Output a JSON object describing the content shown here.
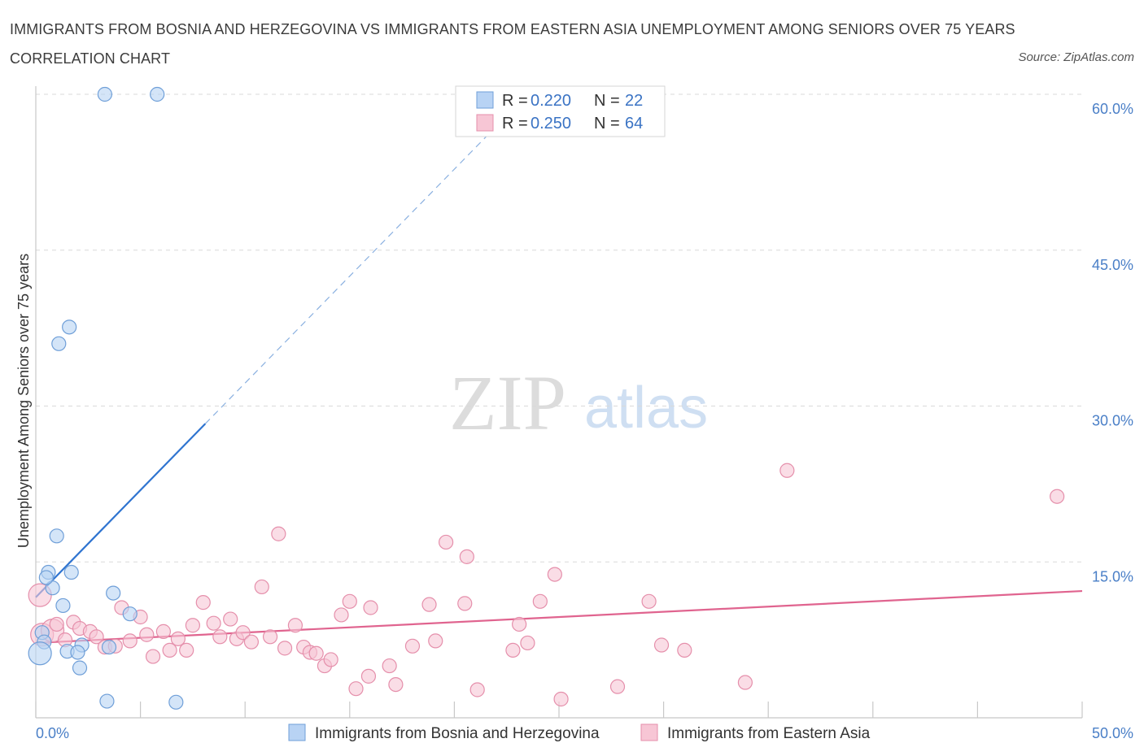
{
  "header": {
    "title": "IMMIGRANTS FROM BOSNIA AND HERZEGOVINA VS IMMIGRANTS FROM EASTERN ASIA UNEMPLOYMENT AMONG SENIORS OVER 75 YEARS CORRELATION CHART",
    "source": "Source: ZipAtlas.com"
  },
  "watermark": {
    "zip": "ZIP",
    "atlas": "atlas"
  },
  "colors": {
    "blue_fill": "#b8d3f4",
    "blue_stroke": "#6f9fd8",
    "blue_line": "#2f74d0",
    "pink_fill": "#f7c6d5",
    "pink_stroke": "#e58fab",
    "pink_line": "#e0648f",
    "axis_label": "#4a7fc7",
    "grid": "#d9d9d9"
  },
  "legend": {
    "r_label": "R =",
    "n_label": "N =",
    "rows": [
      {
        "series": "Immigrants from Bosnia and Herzegovina",
        "r": "0.220",
        "n": "22"
      },
      {
        "series": "Immigrants from Eastern Asia",
        "r": "0.250",
        "n": "64"
      }
    ]
  },
  "chart_data": {
    "type": "scatter",
    "title": "IMMIGRANTS FROM BOSNIA AND HERZEGOVINA VS IMMIGRANTS FROM EASTERN ASIA UNEMPLOYMENT AMONG SENIORS OVER 75 YEARS CORRELATION CHART",
    "xlabel": "",
    "ylabel": "Unemployment Among Seniors over 75 years",
    "xlim": [
      0,
      50
    ],
    "ylim": [
      0,
      60
    ],
    "x_tick_labels": [
      "0.0%",
      "50.0%"
    ],
    "y_ticks": [
      15,
      30,
      45,
      60
    ],
    "y_tick_labels": [
      "15.0%",
      "30.0%",
      "45.0%",
      "60.0%"
    ],
    "grid": true,
    "series": [
      {
        "name": "Immigrants from Bosnia and Herzegovina",
        "color": "#6f9fd8",
        "r": 0.22,
        "n": 22,
        "points": [
          {
            "x": 3.3,
            "y": 60.0
          },
          {
            "x": 5.8,
            "y": 60.0
          },
          {
            "x": 1.6,
            "y": 37.6
          },
          {
            "x": 1.1,
            "y": 36.0
          },
          {
            "x": 1.0,
            "y": 17.5
          },
          {
            "x": 0.6,
            "y": 14.0
          },
          {
            "x": 1.7,
            "y": 14.0
          },
          {
            "x": 0.8,
            "y": 12.5
          },
          {
            "x": 3.7,
            "y": 12.0
          },
          {
            "x": 1.3,
            "y": 10.8
          },
          {
            "x": 4.5,
            "y": 10.0
          },
          {
            "x": 0.3,
            "y": 8.2
          },
          {
            "x": 0.4,
            "y": 7.3
          },
          {
            "x": 2.2,
            "y": 7.0
          },
          {
            "x": 3.5,
            "y": 6.8
          },
          {
            "x": 1.5,
            "y": 6.4
          },
          {
            "x": 2.0,
            "y": 6.3
          },
          {
            "x": 0.2,
            "y": 6.2,
            "size": "large"
          },
          {
            "x": 2.1,
            "y": 4.8
          },
          {
            "x": 3.4,
            "y": 1.6
          },
          {
            "x": 6.7,
            "y": 1.5
          },
          {
            "x": 0.5,
            "y": 13.5
          }
        ],
        "trend": {
          "x0": 0,
          "y0": 11.6,
          "x1": 8.1,
          "y1": 28.3,
          "dashed_to": {
            "x": 21.8,
            "y": 56.5
          }
        }
      },
      {
        "name": "Immigrants from Eastern Asia",
        "color": "#e58fab",
        "r": 0.25,
        "n": 64,
        "points": [
          {
            "x": 0.2,
            "y": 11.8,
            "size": "large"
          },
          {
            "x": 0.3,
            "y": 8.0,
            "size": "large"
          },
          {
            "x": 0.8,
            "y": 8.4,
            "size": "large"
          },
          {
            "x": 1.0,
            "y": 9.0
          },
          {
            "x": 1.4,
            "y": 7.5
          },
          {
            "x": 1.8,
            "y": 9.2
          },
          {
            "x": 2.1,
            "y": 8.6
          },
          {
            "x": 2.6,
            "y": 8.3
          },
          {
            "x": 2.9,
            "y": 7.8
          },
          {
            "x": 3.3,
            "y": 6.8
          },
          {
            "x": 3.8,
            "y": 6.9
          },
          {
            "x": 4.1,
            "y": 10.6
          },
          {
            "x": 4.5,
            "y": 7.4
          },
          {
            "x": 5.0,
            "y": 9.7
          },
          {
            "x": 5.3,
            "y": 8.0
          },
          {
            "x": 5.6,
            "y": 5.9
          },
          {
            "x": 6.1,
            "y": 8.3
          },
          {
            "x": 6.4,
            "y": 6.5
          },
          {
            "x": 6.8,
            "y": 7.6
          },
          {
            "x": 7.2,
            "y": 6.5
          },
          {
            "x": 7.5,
            "y": 8.9
          },
          {
            "x": 8.0,
            "y": 11.1
          },
          {
            "x": 8.5,
            "y": 9.1
          },
          {
            "x": 8.8,
            "y": 7.8
          },
          {
            "x": 9.3,
            "y": 9.5
          },
          {
            "x": 9.6,
            "y": 7.6
          },
          {
            "x": 9.9,
            "y": 8.2
          },
          {
            "x": 10.3,
            "y": 7.3
          },
          {
            "x": 10.8,
            "y": 12.6
          },
          {
            "x": 11.2,
            "y": 7.8
          },
          {
            "x": 11.6,
            "y": 17.7
          },
          {
            "x": 11.9,
            "y": 6.7
          },
          {
            "x": 12.4,
            "y": 8.9
          },
          {
            "x": 12.8,
            "y": 6.8
          },
          {
            "x": 13.1,
            "y": 6.3
          },
          {
            "x": 13.4,
            "y": 6.2
          },
          {
            "x": 13.8,
            "y": 5.0
          },
          {
            "x": 14.1,
            "y": 5.6
          },
          {
            "x": 14.6,
            "y": 9.9
          },
          {
            "x": 15.0,
            "y": 11.2
          },
          {
            "x": 15.3,
            "y": 2.8
          },
          {
            "x": 15.9,
            "y": 4.0
          },
          {
            "x": 16.0,
            "y": 10.6
          },
          {
            "x": 16.9,
            "y": 5.0
          },
          {
            "x": 17.2,
            "y": 3.2
          },
          {
            "x": 18.0,
            "y": 6.9
          },
          {
            "x": 18.8,
            "y": 10.9
          },
          {
            "x": 19.1,
            "y": 7.4
          },
          {
            "x": 19.6,
            "y": 16.9
          },
          {
            "x": 20.5,
            "y": 11.0
          },
          {
            "x": 20.6,
            "y": 15.5
          },
          {
            "x": 21.1,
            "y": 2.7
          },
          {
            "x": 22.8,
            "y": 6.5
          },
          {
            "x": 23.1,
            "y": 9.0
          },
          {
            "x": 23.5,
            "y": 7.2
          },
          {
            "x": 24.1,
            "y": 11.2
          },
          {
            "x": 24.8,
            "y": 13.8
          },
          {
            "x": 25.1,
            "y": 1.8
          },
          {
            "x": 27.8,
            "y": 3.0
          },
          {
            "x": 29.3,
            "y": 11.2
          },
          {
            "x": 29.9,
            "y": 7.0
          },
          {
            "x": 31.0,
            "y": 6.5
          },
          {
            "x": 33.9,
            "y": 3.4
          },
          {
            "x": 35.9,
            "y": 23.8
          }
        ],
        "extra_points": [
          {
            "x": 48.8,
            "y": 21.3
          }
        ],
        "trend": {
          "x0": 0,
          "y0": 7.2,
          "x1": 50,
          "y1": 12.2
        }
      }
    ]
  }
}
